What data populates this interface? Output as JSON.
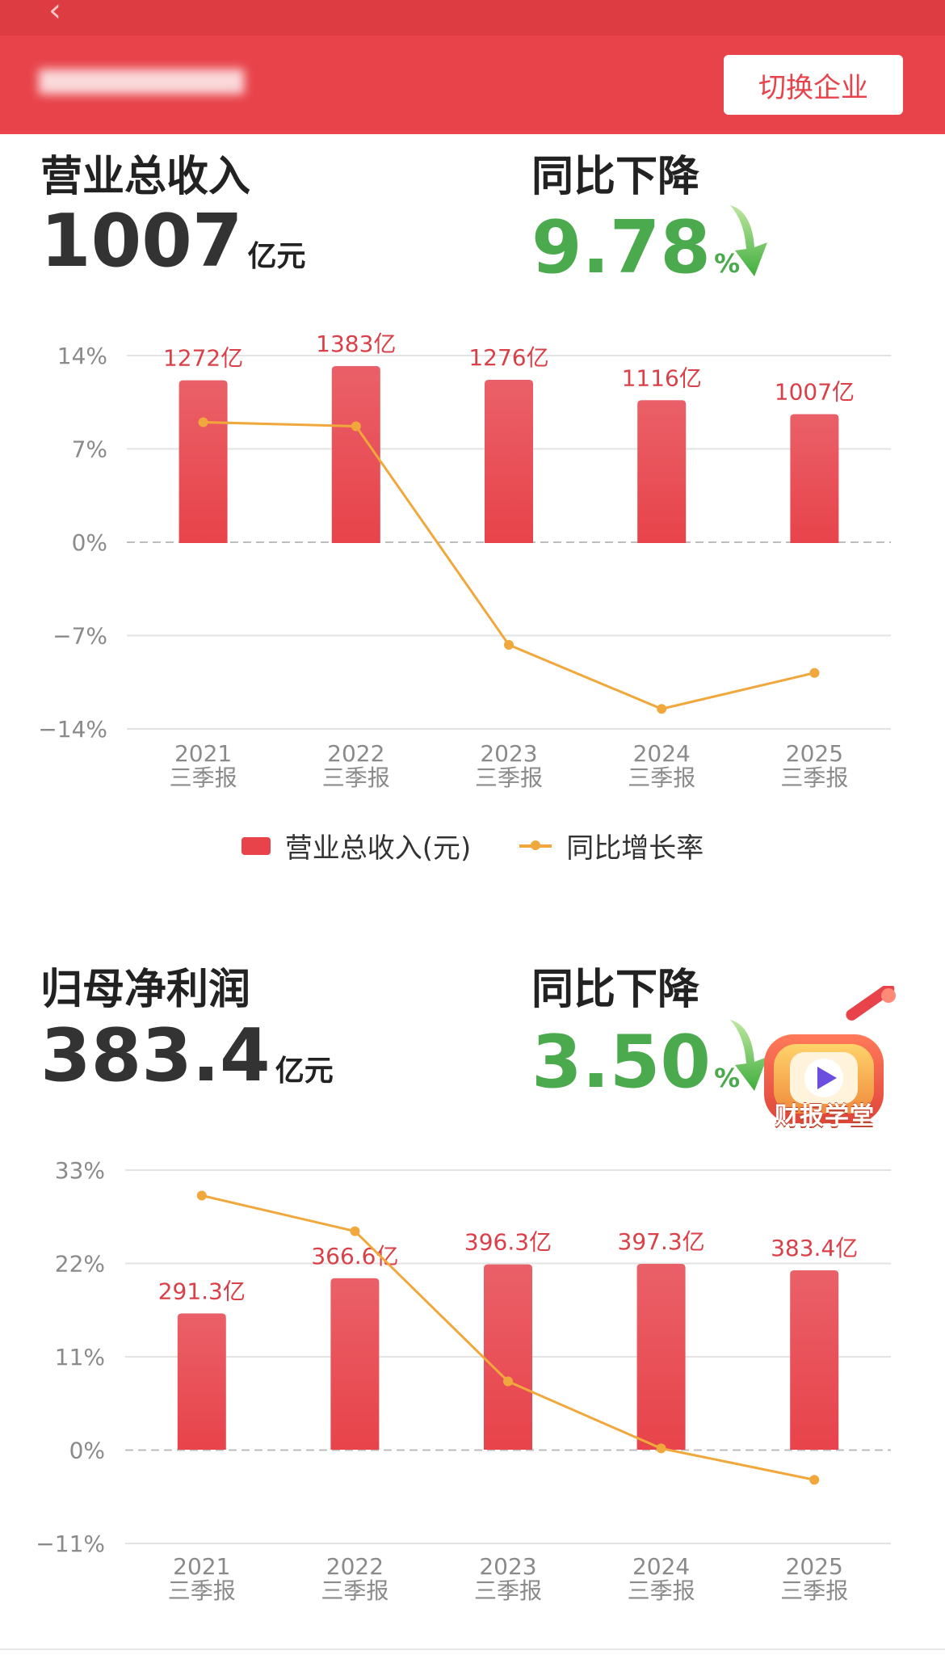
{
  "header": {
    "title": "",
    "switch_label": "切换企业"
  },
  "revenue": {
    "label": "营业总收入",
    "value": "1007",
    "unit": "亿元",
    "change_label": "同比下降",
    "change_value": "9.78",
    "change_unit": "%"
  },
  "profit": {
    "label": "归母净利润",
    "value": "383.4",
    "unit": "亿元",
    "change_label": "同比下降",
    "change_value": "3.50",
    "change_unit": "%"
  },
  "legend": {
    "bar": "营业总收入(元)",
    "line": "同比增长率"
  },
  "badge": {
    "label": "财报学堂"
  },
  "colors": {
    "header": "#e8434a",
    "bar": "#e8434a",
    "line": "#f0a83c",
    "decline": "#4caa4e",
    "bar_label": "#d94048"
  },
  "chart_data": [
    {
      "type": "bar",
      "categories": [
        "2021\n三季报",
        "2022\n三季报",
        "2023\n三季报",
        "2024\n三季报",
        "2025\n三季报"
      ],
      "series": [
        {
          "name": "营业总收入(元)",
          "type": "bar",
          "values": [
            1272,
            1383,
            1276,
            1116,
            1007
          ],
          "labels": [
            "1272亿",
            "1383亿",
            "1276亿",
            "1116亿",
            "1007亿"
          ]
        },
        {
          "name": "同比增长率",
          "type": "line",
          "values": [
            9.0,
            8.7,
            -7.7,
            -12.5,
            -9.8
          ]
        }
      ],
      "yticks": [
        "14%",
        "7%",
        "0%",
        "−7%",
        "−14%"
      ],
      "ylim": [
        -14,
        14
      ],
      "grid": true,
      "legend": "bottom"
    },
    {
      "type": "bar",
      "categories": [
        "2021\n三季报",
        "2022\n三季报",
        "2023\n三季报",
        "2024\n三季报",
        "2025\n三季报"
      ],
      "series": [
        {
          "type": "bar",
          "values": [
            291.3,
            366.6,
            396.3,
            397.3,
            383.4
          ],
          "labels": [
            "291.3亿",
            "366.6亿",
            "396.3亿",
            "397.3亿",
            "383.4亿"
          ]
        },
        {
          "type": "line",
          "values": [
            30.0,
            25.8,
            8.1,
            0.2,
            -3.5
          ]
        }
      ],
      "yticks": [
        "33%",
        "22%",
        "11%",
        "0%",
        "−11%"
      ],
      "ylim": [
        -11,
        33
      ],
      "grid": true
    }
  ]
}
